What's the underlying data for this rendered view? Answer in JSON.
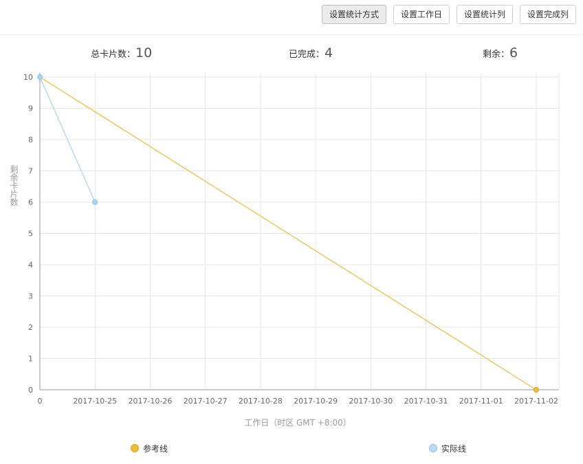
{
  "toolbar": {
    "buttons": [
      {
        "label": "设置统计方式",
        "active": true
      },
      {
        "label": "设置工作日",
        "active": false
      },
      {
        "label": "设置统计列",
        "active": false
      },
      {
        "label": "设置完成列",
        "active": false
      }
    ]
  },
  "stats": {
    "total_label": "总卡片数：",
    "total_value": "10",
    "done_label": "已完成：",
    "done_value": "4",
    "remaining_label": "剩余：",
    "remaining_value": "6"
  },
  "colors": {
    "reference": "#ecbd3a",
    "actual": "#a9d2f0",
    "grid": "#e6e6e6",
    "axis": "#999999"
  },
  "chart_data": {
    "type": "line",
    "categories": [
      "0",
      "2017-10-25",
      "2017-10-26",
      "2017-10-27",
      "2017-10-28",
      "2017-10-29",
      "2017-10-30",
      "2017-10-31",
      "2017-11-01",
      "2017-11-02"
    ],
    "xlabel": "工作日（时区 GMT +8:00）",
    "ylabel": "剩余卡片数",
    "ylim": [
      0,
      10
    ],
    "yticks": [
      0,
      1,
      2,
      3,
      4,
      5,
      6,
      7,
      8,
      9,
      10
    ],
    "grid": true,
    "legend_position": "bottom",
    "series": [
      {
        "name": "参考线",
        "color": "#ecbd3a",
        "points": [
          [
            0,
            10
          ],
          [
            9,
            0
          ]
        ],
        "markers": [
          9
        ]
      },
      {
        "name": "实际线",
        "color": "#a9d2f0",
        "points": [
          [
            0,
            10
          ],
          [
            1,
            6
          ]
        ],
        "markers": [
          0,
          1
        ]
      }
    ]
  }
}
